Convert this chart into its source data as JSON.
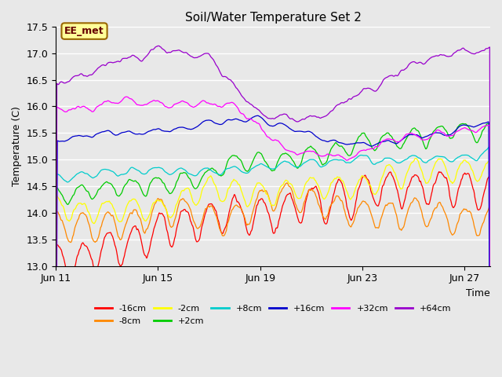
{
  "title": "Soil/Water Temperature Set 2",
  "xlabel": "Time",
  "ylabel": "Temperature (C)",
  "ylim": [
    13.0,
    17.5
  ],
  "xlim_days": [
    0,
    17
  ],
  "x_tick_labels": [
    "Jun 11",
    "Jun 15",
    "Jun 19",
    "Jun 23",
    "Jun 27"
  ],
  "x_tick_positions": [
    0,
    4,
    8,
    12,
    16
  ],
  "annotation_text": "EE_met",
  "annotation_box_color": "#ffff99",
  "annotation_border_color": "#996600",
  "bg_color": "#e8e8e8",
  "plot_bg_color": "#e8e8e8",
  "grid_color": "#ffffff",
  "series": [
    {
      "label": "-16cm",
      "color": "#ff0000"
    },
    {
      "label": "-8cm",
      "color": "#ff8800"
    },
    {
      "label": "-2cm",
      "color": "#ffff00"
    },
    {
      "label": "+2cm",
      "color": "#00cc00"
    },
    {
      "label": "+8cm",
      "color": "#00cccc"
    },
    {
      "label": "+16cm",
      "color": "#0000cc"
    },
    {
      "label": "+32cm",
      "color": "#ff00ff"
    },
    {
      "label": "+64cm",
      "color": "#9900cc"
    }
  ]
}
